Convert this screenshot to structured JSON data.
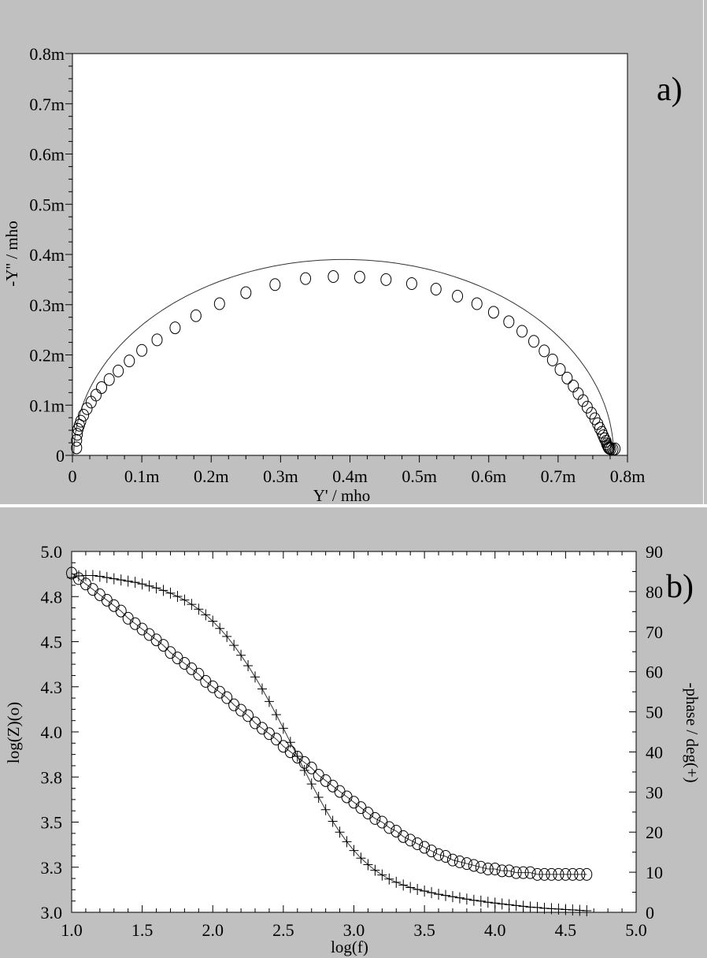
{
  "chart_data": [
    {
      "type": "scatter",
      "panel_label": "a)",
      "xlabel": "Y' / mho",
      "ylabel": "-Y'' / mho",
      "xlim": [
        0,
        0.0008
      ],
      "ylim": [
        0,
        0.0008
      ],
      "x_ticks": [
        "0",
        "0.1m",
        "0.2m",
        "0.3m",
        "0.4m",
        "0.5m",
        "0.6m",
        "0.7m",
        "0.8m"
      ],
      "y_ticks": [
        "0",
        "0.1m",
        "0.2m",
        "0.3m",
        "0.4m",
        "0.5m",
        "0.6m",
        "0.7m",
        "0.8m"
      ],
      "marker": "circle",
      "grid": false,
      "series": [
        {
          "kind": "measured",
          "points": [
            [
              6e-06,
              1.5e-05
            ],
            [
              6e-06,
              3e-05
            ],
            [
              7e-06,
              4.2e-05
            ],
            [
              8e-06,
              5.2e-05
            ],
            [
              1e-05,
              6e-05
            ],
            [
              1.2e-05,
              6.8e-05
            ],
            [
              1.6e-05,
              8e-05
            ],
            [
              2.1e-05,
              9.3e-05
            ],
            [
              2.7e-05,
              0.000106
            ],
            [
              3.4e-05,
              0.00012
            ],
            [
              4.2e-05,
              0.000135
            ],
            [
              5.3e-05,
              0.000151
            ],
            [
              6.6e-05,
              0.000168
            ],
            [
              8.2e-05,
              0.000188
            ],
            [
              0.0001,
              0.000209
            ],
            [
              0.000122,
              0.00023
            ],
            [
              0.000148,
              0.000254
            ],
            [
              0.000178,
              0.000278
            ],
            [
              0.000212,
              0.000302
            ],
            [
              0.00025,
              0.000324
            ],
            [
              0.000292,
              0.00034
            ],
            [
              0.000336,
              0.000352
            ],
            [
              0.000376,
              0.000356
            ],
            [
              0.000414,
              0.000355
            ],
            [
              0.000452,
              0.00035
            ],
            [
              0.000489,
              0.000342
            ],
            [
              0.000524,
              0.000331
            ],
            [
              0.000555,
              0.000317
            ],
            [
              0.000583,
              0.000302
            ],
            [
              0.000607,
              0.000285
            ],
            [
              0.000629,
              0.000266
            ],
            [
              0.000648,
              0.000247
            ],
            [
              0.000665,
              0.000227
            ],
            [
              0.00068,
              0.000208
            ],
            [
              0.000692,
              0.00019
            ],
            [
              0.000703,
              0.000171
            ],
            [
              0.000713,
              0.000154
            ],
            [
              0.000722,
              0.000138
            ],
            [
              0.000729,
              0.000123
            ],
            [
              0.000736,
              0.000109
            ],
            [
              0.000742,
              9.6e-05
            ],
            [
              0.000748,
              8.4e-05
            ],
            [
              0.000753,
              7.3e-05
            ],
            [
              0.000757,
              6.3e-05
            ],
            [
              0.00076,
              5.4e-05
            ],
            [
              0.000763,
              4.6e-05
            ],
            [
              0.000765,
              3.9e-05
            ],
            [
              0.000767,
              3.3e-05
            ],
            [
              0.000769,
              2.8e-05
            ],
            [
              0.00077,
              2.3e-05
            ],
            [
              0.000771,
              2e-05
            ],
            [
              0.000772,
              1.7e-05
            ],
            [
              0.000773,
              1.5e-05
            ],
            [
              0.000774,
              1.4e-05
            ],
            [
              0.000776,
              1.3e-05
            ],
            [
              0.000779,
              1.2e-05
            ],
            [
              0.000782,
              1.3e-05
            ]
          ]
        },
        {
          "kind": "fit",
          "shape": "semicircle",
          "center": [
            0.000391,
            1e-06
          ],
          "radius": 0.000389
        }
      ]
    },
    {
      "type": "line",
      "panel_label": "b)",
      "xlabel": "log(f)",
      "ylabel": "log(Z)(o)",
      "y2label": "-phase / deg(+)",
      "xlim": [
        1.0,
        5.0
      ],
      "ylim": [
        3.0,
        5.0
      ],
      "y2lim": [
        0,
        90
      ],
      "x_ticks": [
        "1.0",
        "1.5",
        "2.0",
        "2.5",
        "3.0",
        "3.5",
        "4.0",
        "4.5",
        "5.0"
      ],
      "y_ticks": [
        "3.0",
        "3.3",
        "3.5",
        "3.8",
        "4.0",
        "4.3",
        "4.5",
        "4.8",
        "5.0"
      ],
      "y2_ticks": [
        "0",
        "10",
        "20",
        "30",
        "40",
        "50",
        "60",
        "70",
        "80",
        "90"
      ],
      "grid": false,
      "series": [
        {
          "kind": "measured",
          "marker": "circle",
          "axis": "left",
          "points": [
            [
              1.0,
              4.88
            ],
            [
              1.05,
              4.85
            ],
            [
              1.1,
              4.82
            ],
            [
              1.15,
              4.79
            ],
            [
              1.2,
              4.76
            ],
            [
              1.25,
              4.73
            ],
            [
              1.3,
              4.7
            ],
            [
              1.35,
              4.67
            ],
            [
              1.4,
              4.63
            ],
            [
              1.45,
              4.6
            ],
            [
              1.5,
              4.57
            ],
            [
              1.55,
              4.54
            ],
            [
              1.6,
              4.51
            ],
            [
              1.65,
              4.48
            ],
            [
              1.7,
              4.44
            ],
            [
              1.75,
              4.41
            ],
            [
              1.8,
              4.38
            ],
            [
              1.85,
              4.35
            ],
            [
              1.9,
              4.32
            ],
            [
              1.95,
              4.28
            ],
            [
              2.0,
              4.25
            ],
            [
              2.05,
              4.22
            ],
            [
              2.1,
              4.19
            ],
            [
              2.15,
              4.15
            ],
            [
              2.2,
              4.12
            ],
            [
              2.25,
              4.09
            ],
            [
              2.3,
              4.05
            ],
            [
              2.35,
              4.02
            ],
            [
              2.4,
              3.99
            ],
            [
              2.45,
              3.96
            ],
            [
              2.5,
              3.92
            ],
            [
              2.55,
              3.89
            ],
            [
              2.6,
              3.86
            ],
            [
              2.65,
              3.83
            ],
            [
              2.7,
              3.8
            ],
            [
              2.75,
              3.76
            ],
            [
              2.8,
              3.73
            ],
            [
              2.85,
              3.7
            ],
            [
              2.9,
              3.67
            ],
            [
              2.95,
              3.64
            ],
            [
              3.0,
              3.61
            ],
            [
              3.05,
              3.58
            ],
            [
              3.1,
              3.55
            ],
            [
              3.15,
              3.52
            ],
            [
              3.2,
              3.5
            ],
            [
              3.25,
              3.47
            ],
            [
              3.3,
              3.45
            ],
            [
              3.35,
              3.42
            ],
            [
              3.4,
              3.4
            ],
            [
              3.45,
              3.38
            ],
            [
              3.5,
              3.36
            ],
            [
              3.55,
              3.34
            ],
            [
              3.6,
              3.32
            ],
            [
              3.65,
              3.31
            ],
            [
              3.7,
              3.29
            ],
            [
              3.75,
              3.28
            ],
            [
              3.8,
              3.27
            ],
            [
              3.85,
              3.26
            ],
            [
              3.9,
              3.25
            ],
            [
              3.95,
              3.24
            ],
            [
              4.0,
              3.24
            ],
            [
              4.05,
              3.23
            ],
            [
              4.1,
              3.23
            ],
            [
              4.15,
              3.22
            ],
            [
              4.2,
              3.22
            ],
            [
              4.25,
              3.22
            ],
            [
              4.3,
              3.21
            ],
            [
              4.35,
              3.21
            ],
            [
              4.4,
              3.21
            ],
            [
              4.45,
              3.21
            ],
            [
              4.5,
              3.21
            ],
            [
              4.55,
              3.21
            ],
            [
              4.6,
              3.21
            ],
            [
              4.65,
              3.21
            ]
          ]
        },
        {
          "kind": "measured",
          "marker": "plus",
          "axis": "right",
          "points": [
            [
              1.0,
              83.5
            ],
            [
              1.05,
              83.9
            ],
            [
              1.1,
              84.0
            ],
            [
              1.15,
              84.0
            ],
            [
              1.2,
              83.8
            ],
            [
              1.25,
              83.5
            ],
            [
              1.3,
              83.2
            ],
            [
              1.35,
              82.9
            ],
            [
              1.4,
              82.6
            ],
            [
              1.45,
              82.3
            ],
            [
              1.5,
              81.9
            ],
            [
              1.55,
              81.4
            ],
            [
              1.6,
              80.9
            ],
            [
              1.65,
              80.3
            ],
            [
              1.7,
              79.6
            ],
            [
              1.75,
              78.8
            ],
            [
              1.8,
              77.9
            ],
            [
              1.85,
              76.8
            ],
            [
              1.9,
              75.6
            ],
            [
              1.95,
              74.2
            ],
            [
              2.0,
              72.6
            ],
            [
              2.05,
              70.8
            ],
            [
              2.1,
              68.8
            ],
            [
              2.15,
              66.6
            ],
            [
              2.2,
              64.1
            ],
            [
              2.25,
              61.5
            ],
            [
              2.3,
              58.7
            ],
            [
              2.35,
              55.7
            ],
            [
              2.4,
              52.6
            ],
            [
              2.45,
              49.3
            ],
            [
              2.5,
              45.9
            ],
            [
              2.55,
              42.4
            ],
            [
              2.6,
              38.9
            ],
            [
              2.65,
              35.4
            ],
            [
              2.7,
              32.0
            ],
            [
              2.75,
              28.7
            ],
            [
              2.8,
              25.6
            ],
            [
              2.85,
              22.7
            ],
            [
              2.9,
              20.0
            ],
            [
              2.95,
              17.6
            ],
            [
              3.0,
              15.4
            ],
            [
              3.05,
              13.5
            ],
            [
              3.1,
              11.9
            ],
            [
              3.15,
              10.5
            ],
            [
              3.2,
              9.3
            ],
            [
              3.25,
              8.3
            ],
            [
              3.3,
              7.5
            ],
            [
              3.35,
              6.8
            ],
            [
              3.4,
              6.2
            ],
            [
              3.45,
              5.7
            ],
            [
              3.5,
              5.3
            ],
            [
              3.55,
              4.9
            ],
            [
              3.6,
              4.5
            ],
            [
              3.65,
              4.2
            ],
            [
              3.7,
              3.9
            ],
            [
              3.75,
              3.6
            ],
            [
              3.8,
              3.3
            ],
            [
              3.85,
              3.0
            ],
            [
              3.9,
              2.8
            ],
            [
              3.95,
              2.5
            ],
            [
              4.0,
              2.3
            ],
            [
              4.05,
              2.1
            ],
            [
              4.1,
              1.9
            ],
            [
              4.15,
              1.7
            ],
            [
              4.2,
              1.5
            ],
            [
              4.25,
              1.3
            ],
            [
              4.3,
              1.2
            ],
            [
              4.35,
              1.0
            ],
            [
              4.4,
              0.9
            ],
            [
              4.45,
              0.8
            ],
            [
              4.5,
              0.7
            ],
            [
              4.55,
              0.6
            ],
            [
              4.6,
              0.5
            ],
            [
              4.65,
              0.4
            ]
          ]
        }
      ]
    }
  ]
}
